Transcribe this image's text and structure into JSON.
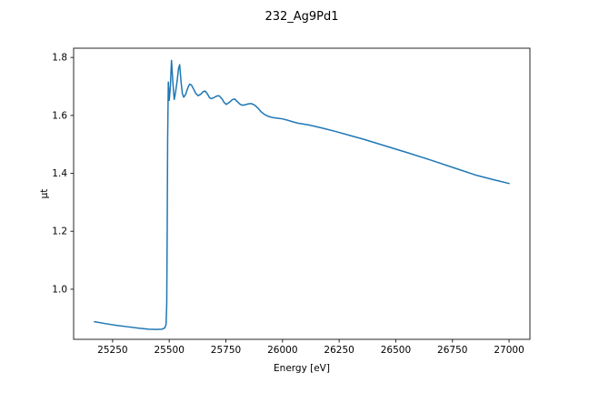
{
  "window": {
    "background_color": "#ffffff"
  },
  "chart_data": {
    "type": "line",
    "title": "232_Ag9Pd1",
    "xlabel": "Energy [eV]",
    "ylabel": "μt",
    "xlim": [
      25078,
      27092
    ],
    "ylim": [
      0.827,
      1.832
    ],
    "xticks": [
      25250,
      25500,
      25750,
      26000,
      26250,
      26500,
      26750,
      27000
    ],
    "yticks": [
      "1.0",
      "1.2",
      "1.4",
      "1.6",
      "1.8"
    ],
    "grid": false,
    "legend": "none",
    "line_color": "#1f77b4",
    "spine_color": "#262626",
    "tick_color": "#262626",
    "series": [
      {
        "name": "232_Ag9Pd1",
        "x": [
          25170,
          25220,
          25270,
          25320,
          25370,
          25410,
          25445,
          25468,
          25480,
          25486,
          25489,
          25491,
          25493,
          25496,
          25500,
          25505,
          25510,
          25516,
          25522,
          25528,
          25535,
          25541,
          25546,
          25552,
          25558,
          25564,
          25572,
          25582,
          25590,
          25598,
          25608,
          25618,
          25628,
          25640,
          25650,
          25658,
          25668,
          25678,
          25686,
          25698,
          25710,
          25720,
          25732,
          25742,
          25752,
          25765,
          25778,
          25788,
          25800,
          25812,
          25822,
          25835,
          25850,
          25862,
          25878,
          25892,
          25905,
          25921,
          25940,
          25960,
          25980,
          26000,
          26020,
          26045,
          26070,
          26117,
          26177,
          26237,
          26297,
          26357,
          26457,
          26557,
          26657,
          26757,
          26857,
          26937,
          27000
        ],
        "y": [
          0.888,
          0.881,
          0.875,
          0.87,
          0.865,
          0.862,
          0.861,
          0.862,
          0.866,
          0.878,
          0.95,
          1.2,
          1.52,
          1.715,
          1.652,
          1.7,
          1.79,
          1.715,
          1.655,
          1.68,
          1.72,
          1.762,
          1.775,
          1.718,
          1.675,
          1.663,
          1.672,
          1.695,
          1.708,
          1.705,
          1.69,
          1.675,
          1.668,
          1.674,
          1.682,
          1.684,
          1.675,
          1.661,
          1.658,
          1.662,
          1.667,
          1.668,
          1.658,
          1.645,
          1.638,
          1.645,
          1.654,
          1.657,
          1.648,
          1.639,
          1.635,
          1.637,
          1.64,
          1.641,
          1.635,
          1.625,
          1.613,
          1.603,
          1.596,
          1.592,
          1.59,
          1.588,
          1.584,
          1.578,
          1.573,
          1.567,
          1.556,
          1.544,
          1.531,
          1.518,
          1.494,
          1.47,
          1.445,
          1.419,
          1.393,
          1.377,
          1.365
        ]
      }
    ]
  }
}
